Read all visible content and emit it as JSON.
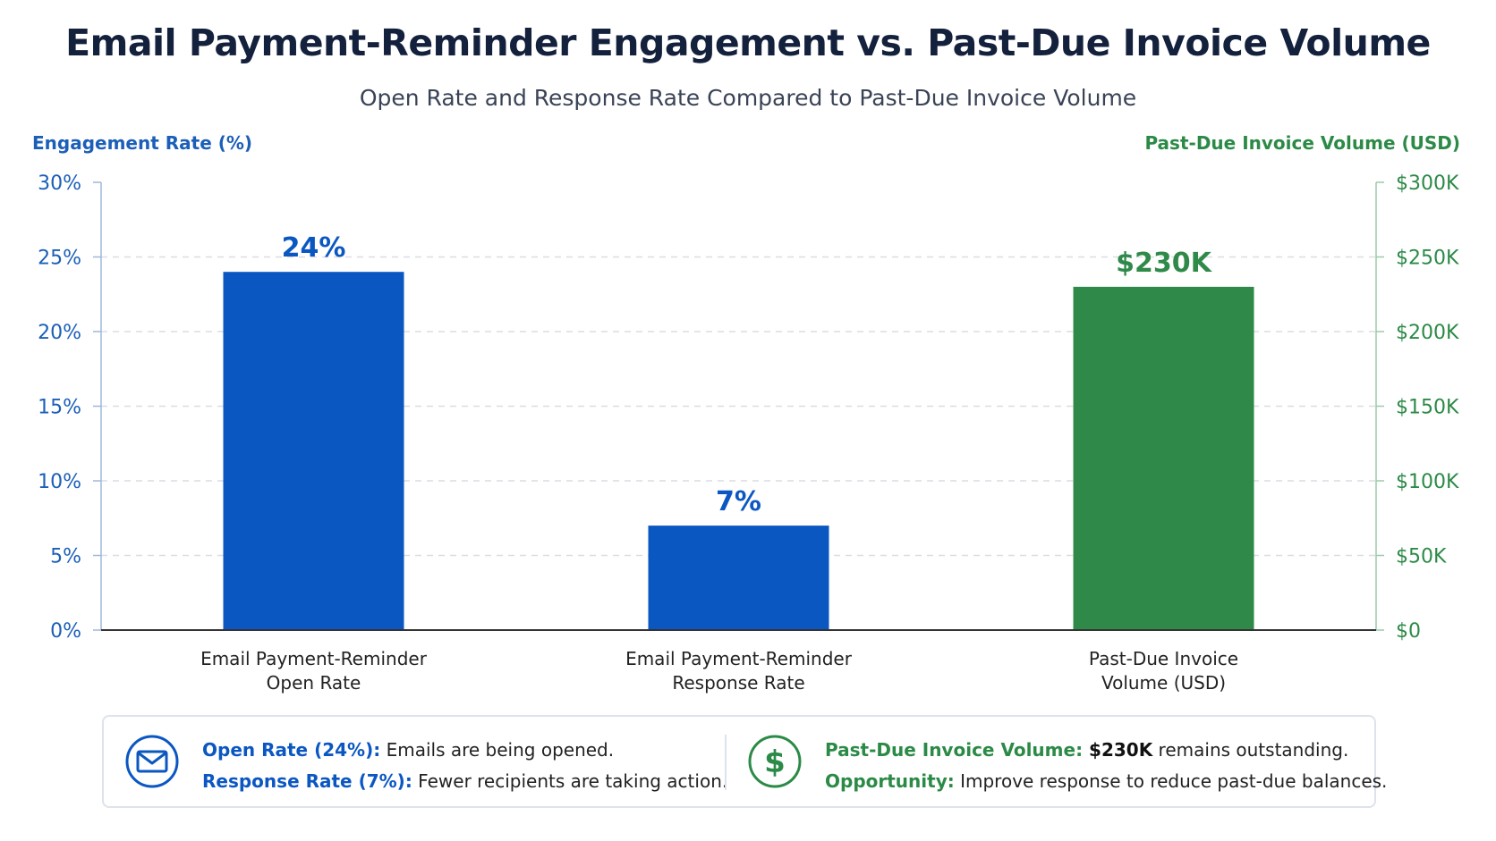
{
  "header": {
    "title": "Email Payment-Reminder Engagement vs. Past-Due Invoice Volume",
    "subtitle": "Open Rate and Response Rate Compared to Past-Due Invoice Volume"
  },
  "colors": {
    "blue": "#0b57c2",
    "green": "#2f8a4a",
    "axis_blue": "#1c5fb8",
    "axis_green": "#2c8a47",
    "grid": "#d9dde3"
  },
  "chart_data": {
    "type": "bar",
    "left_axis": {
      "label": "Engagement Rate (%)",
      "ticks": [
        "0%",
        "5%",
        "10%",
        "15%",
        "20%",
        "25%",
        "30%"
      ],
      "tick_values": [
        0,
        5,
        10,
        15,
        20,
        25,
        30
      ],
      "range": [
        0,
        30
      ]
    },
    "right_axis": {
      "label": "Past-Due Invoice Volume (USD)",
      "ticks": [
        "$0",
        "$50K",
        "$100K",
        "$150K",
        "$200K",
        "$250K",
        "$300K"
      ],
      "tick_values": [
        0,
        50000,
        100000,
        150000,
        200000,
        250000,
        300000
      ],
      "range": [
        0,
        300000
      ]
    },
    "grid": true,
    "bars": [
      {
        "category_lines": [
          "Email Payment-Reminder",
          "Open Rate"
        ],
        "value": 24,
        "axis": "left",
        "label": "24%",
        "color": "#0b57c2"
      },
      {
        "category_lines": [
          "Email Payment-Reminder",
          "Response Rate"
        ],
        "value": 7,
        "axis": "left",
        "label": "7%",
        "color": "#0b57c2"
      },
      {
        "category_lines": [
          "Past-Due Invoice",
          "Volume (USD)"
        ],
        "value": 230000,
        "axis": "right",
        "label": "$230K",
        "color": "#2f8a4a"
      }
    ]
  },
  "summary": {
    "left": {
      "icon": "envelope-icon",
      "line1_key": "Open Rate (24%):",
      "line1_text": " Emails are being opened.",
      "line2_key": "Response Rate (7%):",
      "line2_text": " Fewer recipients are taking action."
    },
    "right": {
      "icon": "dollar-icon",
      "line1_key": "Past-Due Invoice Volume:",
      "line1_value": " $230K",
      "line1_text": " remains outstanding.",
      "line2_key": "Opportunity:",
      "line2_text": " Improve response to reduce past-due balances."
    }
  }
}
